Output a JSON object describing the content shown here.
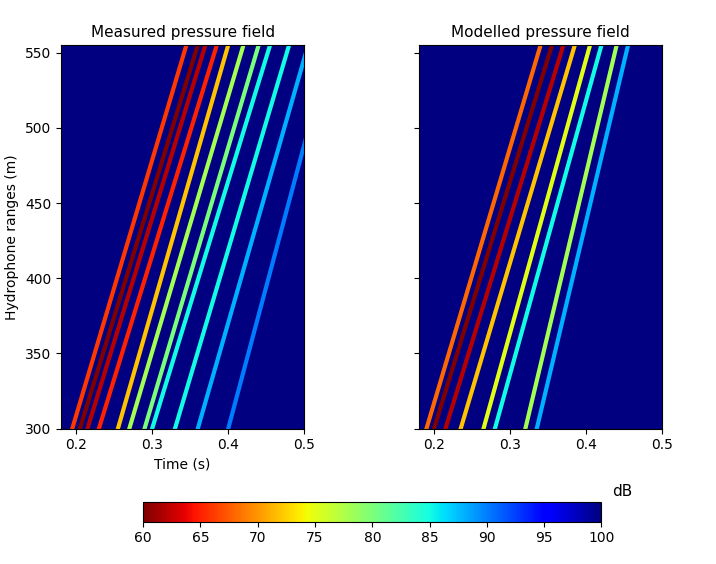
{
  "chart_data": [
    {
      "type": "arrivals",
      "title": "Measured pressure field",
      "x_label": "Time (s)",
      "y_label": "Hydrophone ranges (m)",
      "xlim": [
        0.18,
        0.5
      ],
      "ylim": [
        300,
        555
      ],
      "xticks": [
        0.2,
        0.3,
        0.4,
        0.5
      ],
      "yticks": [
        300,
        350,
        400,
        450,
        500,
        550
      ],
      "background_level": 100,
      "arrivals": [
        {
          "t_start": 0.195,
          "t_end": 0.345,
          "level": 66
        },
        {
          "t_start": 0.205,
          "t_end": 0.36,
          "level": 60
        },
        {
          "t_start": 0.215,
          "t_end": 0.37,
          "level": 62
        },
        {
          "t_start": 0.23,
          "t_end": 0.385,
          "level": 65
        },
        {
          "t_start": 0.255,
          "t_end": 0.4,
          "level": 72
        },
        {
          "t_start": 0.27,
          "t_end": 0.42,
          "level": 78
        },
        {
          "t_start": 0.29,
          "t_end": 0.44,
          "level": 80
        },
        {
          "t_start": 0.3,
          "t_end": 0.455,
          "level": 85
        },
        {
          "t_start": 0.33,
          "t_end": 0.48,
          "level": 85
        },
        {
          "t_start": 0.36,
          "t_end": 0.505,
          "level": 88
        },
        {
          "t_start": 0.4,
          "t_end": 0.535,
          "level": 90
        }
      ]
    },
    {
      "type": "arrivals",
      "title": "Modelled pressure field",
      "xlim": [
        0.18,
        0.5
      ],
      "ylim": [
        300,
        555
      ],
      "xticks": [
        0.2,
        0.3,
        0.4,
        0.5
      ],
      "yticks": [
        300,
        350,
        400,
        450,
        500,
        550
      ],
      "tick_labels": "x",
      "background_level": 100,
      "arrivals": [
        {
          "t_start": 0.19,
          "t_end": 0.34,
          "level": 68
        },
        {
          "t_start": 0.2,
          "t_end": 0.355,
          "level": 60
        },
        {
          "t_start": 0.215,
          "t_end": 0.37,
          "level": 62
        },
        {
          "t_start": 0.235,
          "t_end": 0.385,
          "level": 72
        },
        {
          "t_start": 0.265,
          "t_end": 0.405,
          "level": 75
        },
        {
          "t_start": 0.28,
          "t_end": 0.42,
          "level": 85
        },
        {
          "t_start": 0.32,
          "t_end": 0.44,
          "level": 78
        },
        {
          "t_start": 0.335,
          "t_end": 0.455,
          "level": 88
        }
      ]
    }
  ],
  "colorbar": {
    "label": "dB",
    "range": [
      60,
      100
    ],
    "ticks": [
      60,
      65,
      70,
      75,
      80,
      85,
      90,
      95,
      100
    ]
  }
}
